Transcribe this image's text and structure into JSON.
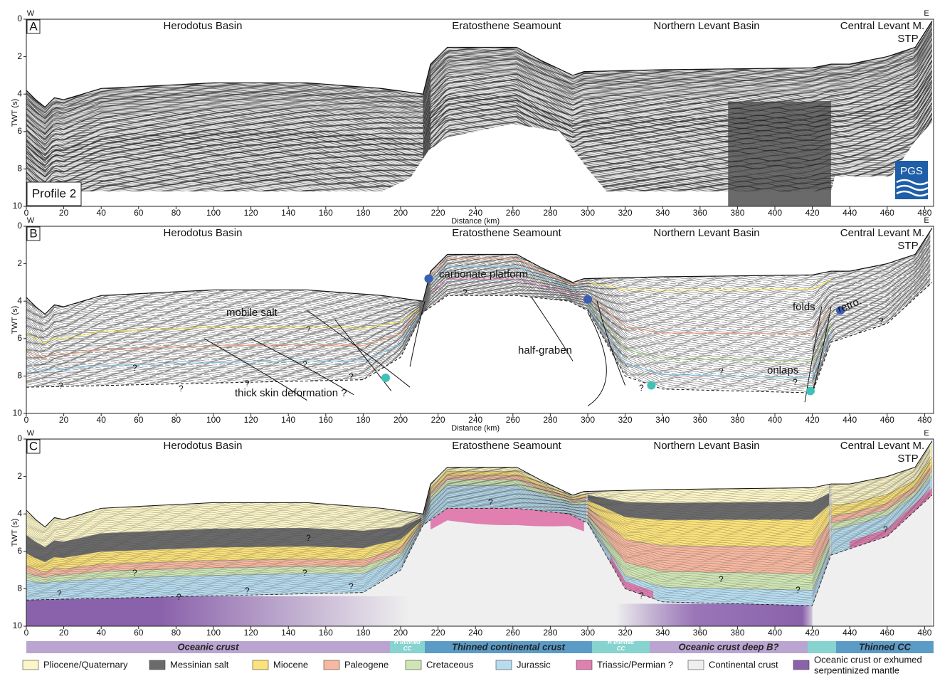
{
  "axes": {
    "x_label": "Distance (km)",
    "y_label": "TWT (s)",
    "west": "W",
    "east": "E",
    "xticks": [
      0,
      20,
      40,
      60,
      80,
      100,
      120,
      140,
      160,
      180,
      200,
      220,
      240,
      260,
      280,
      300,
      320,
      340,
      360,
      380,
      400,
      420,
      440,
      460,
      480
    ],
    "yticks": [
      0,
      2,
      4,
      6,
      8,
      10
    ]
  },
  "regions": [
    "Herodotus Basin",
    "Eratosthene Seamount",
    "Northern Levant Basin",
    "Central Levant M.",
    "STP"
  ],
  "panels": [
    {
      "letter": "A",
      "labels": [
        "Profile 2",
        "PGS"
      ]
    },
    {
      "letter": "B",
      "annotations": [
        "carbonate platform",
        "mobile salt",
        "half-graben",
        "folds",
        "retro.",
        "thick skin deformation ?",
        "onlaps",
        "?",
        "?",
        "?",
        "?",
        "?",
        "?",
        "?",
        "?",
        "?",
        "?",
        "?",
        "?"
      ]
    },
    {
      "letter": "C",
      "annotations": [
        "?",
        "?",
        "?",
        "?",
        "?",
        "?",
        "?",
        "?",
        "?",
        "?",
        "?",
        "?"
      ]
    }
  ],
  "crust_bar": [
    {
      "label": [
        "Oceanic crust"
      ]
    },
    {
      "label": [
        "H thinned",
        "CC"
      ]
    },
    {
      "label": [
        "Thinned continental crust"
      ]
    },
    {
      "label": [
        "H thinned",
        "CC"
      ]
    },
    {
      "label": [
        "Oceanic crust deep B?"
      ]
    },
    {
      "label": [
        "Thinned CC"
      ]
    }
  ],
  "legend": [
    {
      "label": [
        "Pliocene/Quaternary"
      ]
    },
    {
      "label": [
        "Messinian salt"
      ]
    },
    {
      "label": [
        "Miocene"
      ]
    },
    {
      "label": [
        "Paleogene"
      ]
    },
    {
      "label": [
        "Cretaceous"
      ]
    },
    {
      "label": [
        "Jurassic"
      ]
    },
    {
      "label": [
        "Triassic/Permian ?"
      ]
    },
    {
      "label": [
        "Continental crust"
      ]
    },
    {
      "label": [
        "Oceanic crust or exhumed",
        "serpentinized mantle"
      ]
    }
  ]
}
